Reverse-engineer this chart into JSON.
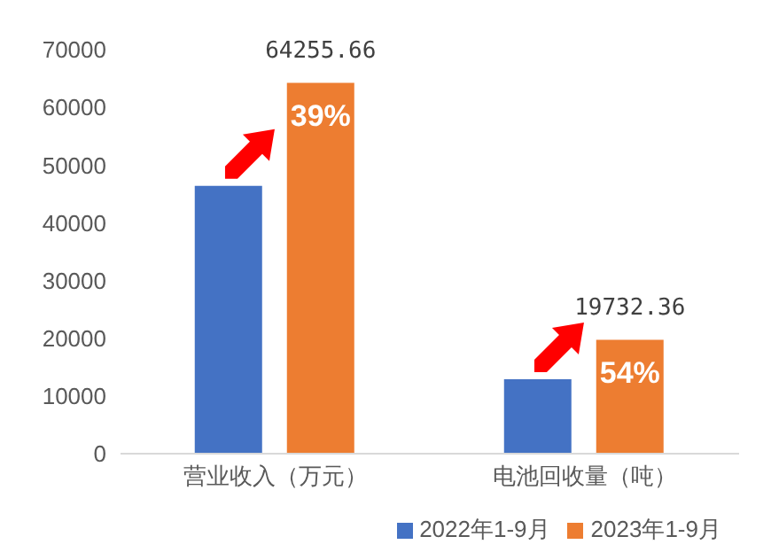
{
  "chart_data": {
    "type": "bar",
    "categories": [
      "营业收入（万元）",
      "电池回收量（吨）"
    ],
    "series": [
      {
        "name": "2022年1-9月",
        "color": "#4472c4",
        "values": [
          46400,
          12900
        ]
      },
      {
        "name": "2023年1-9月",
        "color": "#ed7d31",
        "values": [
          64255.66,
          19732.36
        ],
        "value_labels": [
          "64255.66",
          "19732.36"
        ]
      }
    ],
    "annotations": [
      "39%",
      "54%"
    ],
    "ylim": [
      0,
      70000
    ],
    "yticks": [
      0,
      10000,
      20000,
      30000,
      40000,
      50000,
      60000,
      70000
    ],
    "grid": false,
    "legend": "bottom right"
  }
}
